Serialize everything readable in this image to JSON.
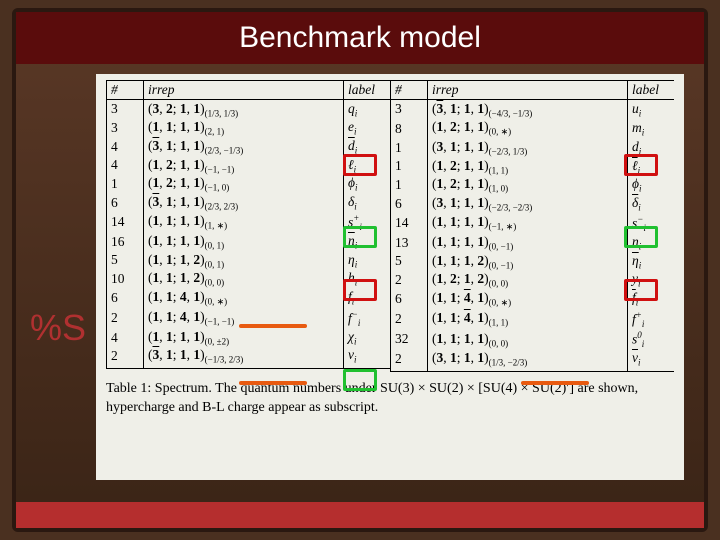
{
  "title": "Benchmark model",
  "side": "%S",
  "headers": [
    "#",
    "irrep",
    "label"
  ],
  "left_rows": [
    {
      "n": "3",
      "irrep": "(3, 2; 1, 1)",
      "sub": "(1/3, 1/3)",
      "label": "q",
      "li": "i"
    },
    {
      "n": "3",
      "irrep": "(1, 1; 1, 1)",
      "sub": "(2, 1)",
      "label": "e",
      "li": "i"
    },
    {
      "n": "4",
      "irrep": "(3̄, 1; 1, 1)",
      "sub": "(2/3, −1/3)",
      "label": "d̄",
      "li": "i"
    },
    {
      "n": "4",
      "irrep": "(1, 2; 1, 1)",
      "sub": "(−1, −1)",
      "label": "ℓ",
      "li": "i"
    },
    {
      "n": "1",
      "irrep": "(1, 2; 1, 1)",
      "sub": "(−1, 0)",
      "label": "ϕ",
      "li": "i"
    },
    {
      "n": "6",
      "irrep": "(3̄, 1; 1, 1)",
      "sub": "(2/3, 2/3)",
      "label": "δ",
      "li": "i"
    },
    {
      "n": "14",
      "irrep": "(1, 1; 1, 1)",
      "sub": "(1, ∗)",
      "label": "s",
      "li": "i",
      "sup": "+"
    },
    {
      "n": "16",
      "irrep": "(1, 1; 1, 1)",
      "sub": "(0, 1)",
      "label": "n̄",
      "li": "i"
    },
    {
      "n": "5",
      "irrep": "(1, 1; 1, 2)",
      "sub": "(0, 1)",
      "label": "η",
      "li": "i"
    },
    {
      "n": "10",
      "irrep": "(1, 1; 1, 2)",
      "sub": "(0, 0)",
      "label": "h",
      "li": "i"
    },
    {
      "n": "6",
      "irrep": "(1, 1; 4, 1)",
      "sub": "(0, ∗)",
      "label": "f",
      "li": "i"
    },
    {
      "n": "2",
      "irrep": "(1, 1; 4, 1)",
      "sub": "(−1, −1)",
      "label": "f",
      "li": "i",
      "sup": "−"
    },
    {
      "n": "4",
      "irrep": "(1, 1; 1, 1)",
      "sub": "(0, ±2)",
      "label": "χ",
      "li": "i"
    },
    {
      "n": "2",
      "irrep": "(3̄, 1; 1, 1)",
      "sub": "(−1/3, 2/3)",
      "label": "v",
      "li": "i"
    }
  ],
  "right_rows": [
    {
      "n": "3",
      "irrep": "(3̄, 1; 1, 1)",
      "sub": "(−4/3, −1/3)",
      "label": "u",
      "li": "i"
    },
    {
      "n": "8",
      "irrep": "(1, 2; 1, 1)",
      "sub": "(0, ∗)",
      "label": "m",
      "li": "i"
    },
    {
      "n": "1",
      "irrep": "(3, 1; 1, 1)",
      "sub": "(−2/3, 1/3)",
      "label": "d",
      "li": "i"
    },
    {
      "n": "1",
      "irrep": "(1, 2; 1, 1)",
      "sub": "(1, 1)",
      "label": "ℓ̄",
      "li": "i"
    },
    {
      "n": "1",
      "irrep": "(1, 2; 1, 1)",
      "sub": "(1, 0)",
      "label": "ϕ̄",
      "li": "i"
    },
    {
      "n": "6",
      "irrep": "(3, 1; 1, 1)",
      "sub": "(−2/3, −2/3)",
      "label": "δ̄",
      "li": "i"
    },
    {
      "n": "14",
      "irrep": "(1, 1; 1, 1)",
      "sub": "(−1, ∗)",
      "label": "s",
      "li": "i",
      "sup": "−"
    },
    {
      "n": "13",
      "irrep": "(1, 1; 1, 1)",
      "sub": "(0, −1)",
      "label": "n",
      "li": "i"
    },
    {
      "n": "5",
      "irrep": "(1, 1; 1, 2)",
      "sub": "(0, −1)",
      "label": "η̄",
      "li": "i"
    },
    {
      "n": "2",
      "irrep": "(1, 2; 1, 2)",
      "sub": "(0, 0)",
      "label": "y",
      "li": "i"
    },
    {
      "n": "6",
      "irrep": "(1, 1; 4̄, 1)",
      "sub": "(0, ∗)",
      "label": "f̄",
      "li": "i"
    },
    {
      "n": "2",
      "irrep": "(1, 1; 4̄, 1)",
      "sub": "(1, 1)",
      "label": "f",
      "li": "i",
      "sup": "+"
    },
    {
      "n": "32",
      "irrep": "(1, 1; 1, 1)",
      "sub": "(0, 0)",
      "label": "s",
      "li": "i",
      "sup": "0"
    },
    {
      "n": "2",
      "irrep": "(3, 1; 1, 1)",
      "sub": "(1/3, −2/3)",
      "label": "v̄",
      "li": "i"
    }
  ],
  "caption": "Table 1: Spectrum. The quantum numbers under SU(3) × SU(2) × [SU(4) × SU(2)′] are shown, hypercharge and B-L charge appear as subscript.",
  "hl": {
    "red": [
      {
        "t": 74,
        "l": 237,
        "w": 28,
        "h": 16
      },
      {
        "t": 74,
        "l": 518,
        "w": 28,
        "h": 16
      },
      {
        "t": 199,
        "l": 237,
        "w": 28,
        "h": 16
      },
      {
        "t": 199,
        "l": 518,
        "w": 28,
        "h": 16
      }
    ],
    "green": [
      {
        "t": 146,
        "l": 237,
        "w": 28,
        "h": 16
      },
      {
        "t": 146,
        "l": 518,
        "w": 28,
        "h": 16
      },
      {
        "t": 289,
        "l": 237,
        "w": 28,
        "h": 16
      }
    ],
    "orange": [
      {
        "t": 244,
        "l": 133,
        "w": 68
      },
      {
        "t": 301,
        "l": 133,
        "w": 68
      },
      {
        "t": 301,
        "l": 415,
        "w": 68
      }
    ]
  }
}
